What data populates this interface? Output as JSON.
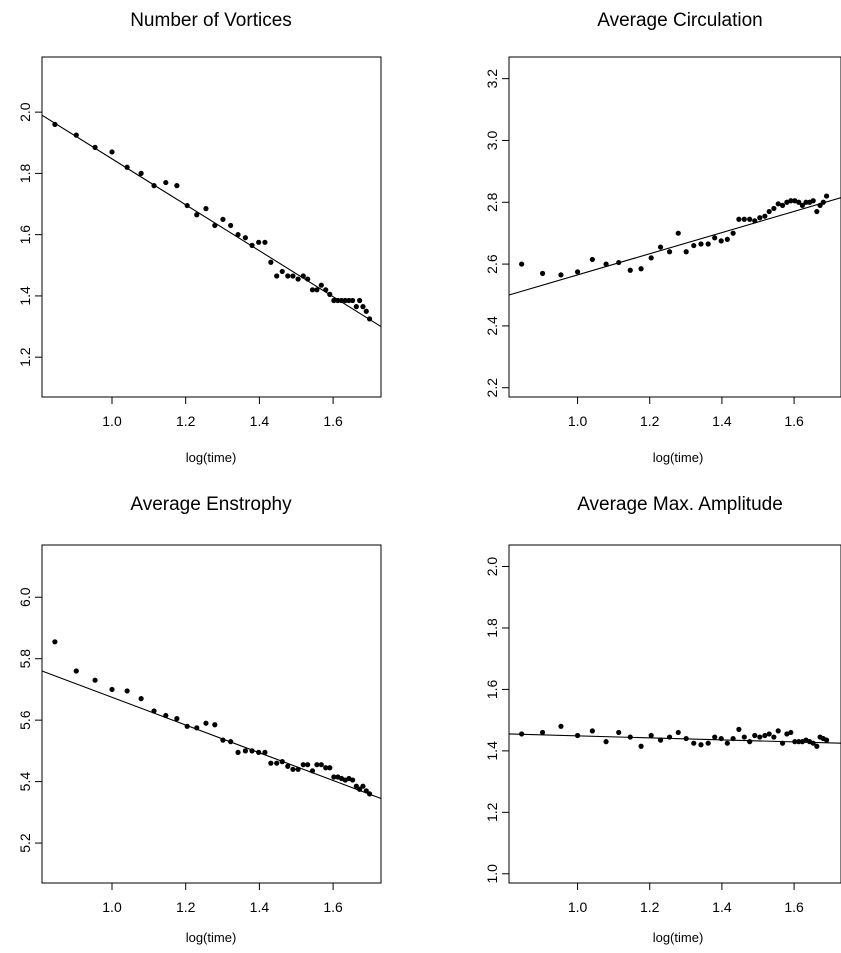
{
  "figure": {
    "panels": [
      {
        "title": "Number of Vortices",
        "xlabel": "log(time)"
      },
      {
        "title": "Average Circulation",
        "xlabel": "log(time)"
      },
      {
        "title": "Average Enstrophy",
        "xlabel": "log(time)"
      },
      {
        "title": "Average Max. Amplitude",
        "xlabel": "log(time)"
      }
    ]
  },
  "chart_data": [
    {
      "type": "scatter",
      "title": "Number of Vortices",
      "xlabel": "log(time)",
      "ylabel": "",
      "xlim": [
        0.81,
        1.73
      ],
      "ylim": [
        1.07,
        2.18
      ],
      "xticks": [
        "1.0",
        "1.2",
        "1.4",
        "1.6"
      ],
      "yticks": [
        "1.2",
        "1.4",
        "1.6",
        "1.8",
        "2.0"
      ],
      "points": [
        [
          0.845,
          1.96
        ],
        [
          0.903,
          1.925
        ],
        [
          0.954,
          1.885
        ],
        [
          1.0,
          1.87
        ],
        [
          1.041,
          1.82
        ],
        [
          1.079,
          1.8
        ],
        [
          1.114,
          1.76
        ],
        [
          1.146,
          1.77
        ],
        [
          1.176,
          1.76
        ],
        [
          1.204,
          1.695
        ],
        [
          1.23,
          1.665
        ],
        [
          1.255,
          1.685
        ],
        [
          1.279,
          1.63
        ],
        [
          1.301,
          1.65
        ],
        [
          1.322,
          1.63
        ],
        [
          1.342,
          1.6
        ],
        [
          1.362,
          1.59
        ],
        [
          1.38,
          1.565
        ],
        [
          1.398,
          1.575
        ],
        [
          1.415,
          1.575
        ],
        [
          1.431,
          1.51
        ],
        [
          1.447,
          1.465
        ],
        [
          1.462,
          1.48
        ],
        [
          1.477,
          1.465
        ],
        [
          1.491,
          1.465
        ],
        [
          1.505,
          1.455
        ],
        [
          1.519,
          1.465
        ],
        [
          1.531,
          1.455
        ],
        [
          1.544,
          1.42
        ],
        [
          1.556,
          1.42
        ],
        [
          1.568,
          1.435
        ],
        [
          1.58,
          1.42
        ],
        [
          1.591,
          1.405
        ],
        [
          1.602,
          1.385
        ],
        [
          1.613,
          1.385
        ],
        [
          1.623,
          1.385
        ],
        [
          1.633,
          1.385
        ],
        [
          1.643,
          1.385
        ],
        [
          1.653,
          1.385
        ],
        [
          1.663,
          1.365
        ],
        [
          1.672,
          1.385
        ],
        [
          1.681,
          1.365
        ],
        [
          1.69,
          1.35
        ],
        [
          1.699,
          1.325
        ]
      ],
      "fit_line": [
        [
          0.81,
          1.99
        ],
        [
          1.73,
          1.3
        ]
      ]
    },
    {
      "type": "scatter",
      "title": "Average Circulation",
      "xlabel": "log(time)",
      "ylabel": "",
      "xlim": [
        0.81,
        1.73
      ],
      "ylim": [
        2.17,
        3.27
      ],
      "xticks": [
        "1.0",
        "1.2",
        "1.4",
        "1.6"
      ],
      "yticks": [
        "2.2",
        "2.4",
        "2.6",
        "2.8",
        "3.0",
        "3.2"
      ],
      "points": [
        [
          0.845,
          2.6
        ],
        [
          0.903,
          2.57
        ],
        [
          0.954,
          2.565
        ],
        [
          1.0,
          2.575
        ],
        [
          1.041,
          2.615
        ],
        [
          1.079,
          2.6
        ],
        [
          1.114,
          2.605
        ],
        [
          1.146,
          2.58
        ],
        [
          1.176,
          2.585
        ],
        [
          1.204,
          2.62
        ],
        [
          1.23,
          2.655
        ],
        [
          1.255,
          2.64
        ],
        [
          1.279,
          2.7
        ],
        [
          1.301,
          2.64
        ],
        [
          1.322,
          2.66
        ],
        [
          1.342,
          2.665
        ],
        [
          1.362,
          2.665
        ],
        [
          1.38,
          2.685
        ],
        [
          1.398,
          2.675
        ],
        [
          1.415,
          2.68
        ],
        [
          1.431,
          2.7
        ],
        [
          1.447,
          2.745
        ],
        [
          1.462,
          2.745
        ],
        [
          1.477,
          2.745
        ],
        [
          1.491,
          2.74
        ],
        [
          1.505,
          2.75
        ],
        [
          1.519,
          2.755
        ],
        [
          1.531,
          2.77
        ],
        [
          1.544,
          2.78
        ],
        [
          1.556,
          2.795
        ],
        [
          1.568,
          2.79
        ],
        [
          1.58,
          2.8
        ],
        [
          1.591,
          2.805
        ],
        [
          1.602,
          2.805
        ],
        [
          1.613,
          2.8
        ],
        [
          1.623,
          2.79
        ],
        [
          1.633,
          2.8
        ],
        [
          1.643,
          2.8
        ],
        [
          1.653,
          2.805
        ],
        [
          1.663,
          2.77
        ],
        [
          1.672,
          2.79
        ],
        [
          1.681,
          2.8
        ],
        [
          1.69,
          2.82
        ]
      ],
      "fit_line": [
        [
          0.81,
          2.5
        ],
        [
          1.73,
          2.815
        ]
      ]
    },
    {
      "type": "scatter",
      "title": "Average Enstrophy",
      "xlabel": "log(time)",
      "ylabel": "",
      "xlim": [
        0.81,
        1.73
      ],
      "ylim": [
        5.07,
        6.17
      ],
      "xticks": [
        "1.0",
        "1.2",
        "1.4",
        "1.6"
      ],
      "yticks": [
        "5.2",
        "5.4",
        "5.6",
        "5.8",
        "6.0"
      ],
      "points": [
        [
          0.845,
          5.855
        ],
        [
          0.903,
          5.76
        ],
        [
          0.954,
          5.73
        ],
        [
          1.0,
          5.7
        ],
        [
          1.041,
          5.695
        ],
        [
          1.079,
          5.67
        ],
        [
          1.114,
          5.63
        ],
        [
          1.146,
          5.615
        ],
        [
          1.176,
          5.605
        ],
        [
          1.204,
          5.58
        ],
        [
          1.23,
          5.575
        ],
        [
          1.255,
          5.59
        ],
        [
          1.279,
          5.585
        ],
        [
          1.301,
          5.535
        ],
        [
          1.322,
          5.53
        ],
        [
          1.342,
          5.495
        ],
        [
          1.362,
          5.5
        ],
        [
          1.38,
          5.5
        ],
        [
          1.398,
          5.495
        ],
        [
          1.415,
          5.495
        ],
        [
          1.431,
          5.46
        ],
        [
          1.447,
          5.46
        ],
        [
          1.462,
          5.465
        ],
        [
          1.477,
          5.45
        ],
        [
          1.491,
          5.44
        ],
        [
          1.505,
          5.44
        ],
        [
          1.519,
          5.455
        ],
        [
          1.531,
          5.455
        ],
        [
          1.544,
          5.435
        ],
        [
          1.556,
          5.455
        ],
        [
          1.568,
          5.455
        ],
        [
          1.58,
          5.445
        ],
        [
          1.591,
          5.445
        ],
        [
          1.602,
          5.415
        ],
        [
          1.613,
          5.415
        ],
        [
          1.623,
          5.41
        ],
        [
          1.633,
          5.405
        ],
        [
          1.643,
          5.41
        ],
        [
          1.653,
          5.405
        ],
        [
          1.663,
          5.385
        ],
        [
          1.672,
          5.375
        ],
        [
          1.681,
          5.385
        ],
        [
          1.69,
          5.37
        ],
        [
          1.699,
          5.36
        ]
      ],
      "fit_line": [
        [
          0.81,
          5.76
        ],
        [
          1.73,
          5.345
        ]
      ]
    },
    {
      "type": "scatter",
      "title": "Average Max. Amplitude",
      "xlabel": "log(time)",
      "ylabel": "",
      "xlim": [
        0.81,
        1.73
      ],
      "ylim": [
        0.97,
        2.07
      ],
      "xticks": [
        "1.0",
        "1.2",
        "1.4",
        "1.6"
      ],
      "yticks": [
        "1.0",
        "1.2",
        "1.4",
        "1.6",
        "1.8",
        "2.0"
      ],
      "points": [
        [
          0.845,
          1.455
        ],
        [
          0.903,
          1.46
        ],
        [
          0.954,
          1.48
        ],
        [
          1.0,
          1.45
        ],
        [
          1.041,
          1.465
        ],
        [
          1.079,
          1.43
        ],
        [
          1.114,
          1.46
        ],
        [
          1.146,
          1.445
        ],
        [
          1.176,
          1.415
        ],
        [
          1.204,
          1.45
        ],
        [
          1.23,
          1.435
        ],
        [
          1.255,
          1.445
        ],
        [
          1.279,
          1.46
        ],
        [
          1.301,
          1.44
        ],
        [
          1.322,
          1.425
        ],
        [
          1.342,
          1.42
        ],
        [
          1.362,
          1.425
        ],
        [
          1.38,
          1.445
        ],
        [
          1.398,
          1.44
        ],
        [
          1.415,
          1.425
        ],
        [
          1.431,
          1.44
        ],
        [
          1.447,
          1.47
        ],
        [
          1.462,
          1.445
        ],
        [
          1.477,
          1.43
        ],
        [
          1.491,
          1.45
        ],
        [
          1.505,
          1.445
        ],
        [
          1.519,
          1.45
        ],
        [
          1.531,
          1.455
        ],
        [
          1.544,
          1.445
        ],
        [
          1.556,
          1.465
        ],
        [
          1.568,
          1.425
        ],
        [
          1.58,
          1.455
        ],
        [
          1.591,
          1.46
        ],
        [
          1.602,
          1.43
        ],
        [
          1.613,
          1.43
        ],
        [
          1.623,
          1.43
        ],
        [
          1.633,
          1.435
        ],
        [
          1.643,
          1.43
        ],
        [
          1.653,
          1.425
        ],
        [
          1.663,
          1.415
        ],
        [
          1.672,
          1.445
        ],
        [
          1.681,
          1.44
        ],
        [
          1.69,
          1.435
        ]
      ],
      "fit_line": [
        [
          0.81,
          1.455
        ],
        [
          1.73,
          1.425
        ]
      ]
    }
  ]
}
